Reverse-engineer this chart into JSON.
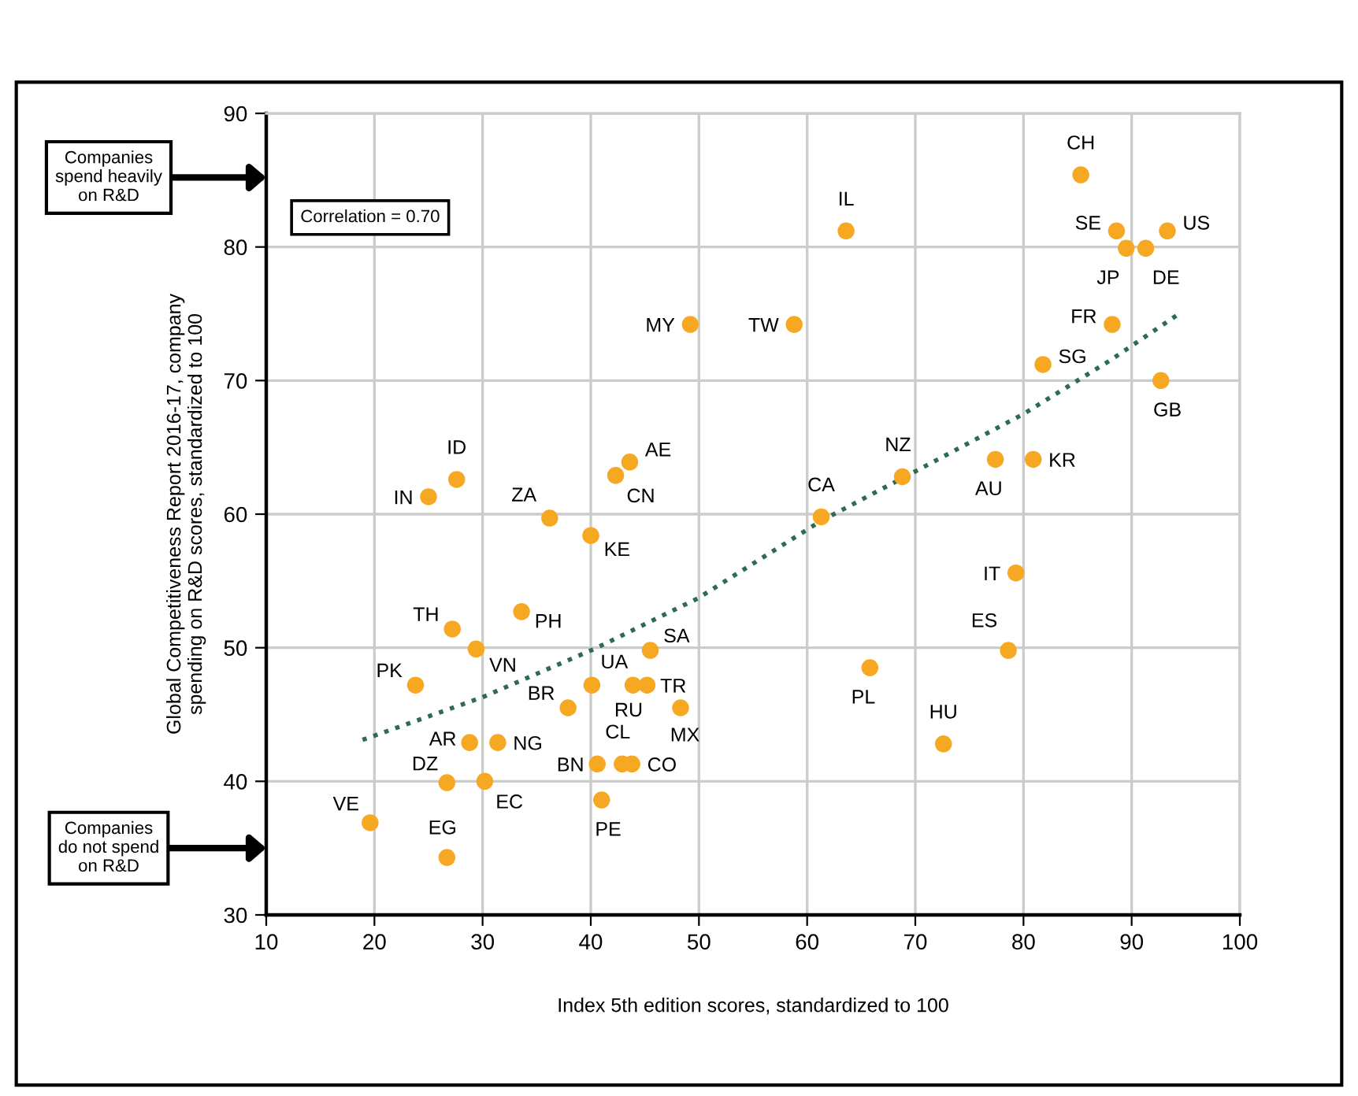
{
  "chart_data": {
    "type": "scatter",
    "xlabel": "Index 5th edition scores, standardized to 100",
    "ylabel": "Global Competitiveness Report 2016-17, company spending on R&D scores, standardized to 100",
    "xlim": [
      10,
      100
    ],
    "xticks": [
      10,
      20,
      30,
      40,
      50,
      60,
      70,
      80,
      90,
      100
    ],
    "ylim": [
      30,
      90
    ],
    "yticks": [
      30,
      40,
      50,
      60,
      70,
      80,
      90
    ],
    "grid": true,
    "marker": "circle",
    "series": [
      {
        "color": "#f7a823",
        "x": [
          85.3,
          63.6,
          88.6,
          93.3,
          89.5,
          91.3,
          49.2,
          58.8,
          88.2,
          81.8,
          92.7,
          43.6,
          42.3,
          27.6,
          25.0,
          36.2,
          40.0,
          61.3,
          68.8,
          77.4,
          80.9,
          79.3,
          78.6,
          65.8,
          72.6,
          27.2,
          33.6,
          29.4,
          45.5,
          23.8,
          40.1,
          43.9,
          45.2,
          37.9,
          48.3,
          28.8,
          31.4,
          40.6,
          42.9,
          43.8,
          26.7,
          30.2,
          41.0,
          19.6,
          26.7
        ],
        "values": [
          85.4,
          81.2,
          81.2,
          81.2,
          79.9,
          79.9,
          74.2,
          74.2,
          74.2,
          71.2,
          70.0,
          63.9,
          62.9,
          62.6,
          61.3,
          59.7,
          58.4,
          59.8,
          62.8,
          64.1,
          64.1,
          55.6,
          49.8,
          48.5,
          42.8,
          51.4,
          52.7,
          49.9,
          49.8,
          47.2,
          47.2,
          47.2,
          47.2,
          45.5,
          45.5,
          42.9,
          42.9,
          41.3,
          41.3,
          41.3,
          39.9,
          40.0,
          38.6,
          36.9,
          34.3
        ]
      },
      {
        "type": "line",
        "marker": "none",
        "color": "#2f6b4f",
        "line_style": "dotted",
        "x": [
          18.9,
          30,
          40.3,
          49.9,
          61.3,
          70,
          80.0,
          88,
          94.2
        ],
        "values": [
          43.1,
          46.3,
          49.9,
          53.7,
          59.5,
          63.2,
          67.5,
          71.5,
          74.9
        ]
      }
    ],
    "annotations": [
      "Correlation = 0.70",
      "Companies spend heavily on R&D",
      "Companies do not spend on R&D",
      {
        "text": "CH",
        "x": 85.3,
        "y": 85.4
      },
      {
        "text": "IL",
        "x": 63.6,
        "y": 81.2
      },
      {
        "text": "SE",
        "x": 88.6,
        "y": 81.2
      },
      {
        "text": "US",
        "x": 93.3,
        "y": 81.2
      },
      {
        "text": "JP",
        "x": 89.5,
        "y": 79.9
      },
      {
        "text": "DE",
        "x": 91.3,
        "y": 79.9
      },
      {
        "text": "MY",
        "x": 49.2,
        "y": 74.2
      },
      {
        "text": "TW",
        "x": 58.8,
        "y": 74.2
      },
      {
        "text": "FR",
        "x": 88.2,
        "y": 74.2
      },
      {
        "text": "SG",
        "x": 81.8,
        "y": 71.2
      },
      {
        "text": "GB",
        "x": 92.7,
        "y": 70.0
      },
      {
        "text": "AE",
        "x": 43.6,
        "y": 63.9
      },
      {
        "text": "CN",
        "x": 42.3,
        "y": 62.9
      },
      {
        "text": "ID",
        "x": 27.6,
        "y": 62.6
      },
      {
        "text": "IN",
        "x": 25.0,
        "y": 61.3
      },
      {
        "text": "ZA",
        "x": 36.2,
        "y": 59.7
      },
      {
        "text": "KE",
        "x": 40.0,
        "y": 58.4
      },
      {
        "text": "CA",
        "x": 61.3,
        "y": 59.8
      },
      {
        "text": "NZ",
        "x": 68.8,
        "y": 62.8
      },
      {
        "text": "AU",
        "x": 77.4,
        "y": 64.1
      },
      {
        "text": "KR",
        "x": 80.9,
        "y": 64.1
      },
      {
        "text": "IT",
        "x": 79.3,
        "y": 55.6
      },
      {
        "text": "ES",
        "x": 78.6,
        "y": 49.8
      },
      {
        "text": "PL",
        "x": 65.8,
        "y": 48.5
      },
      {
        "text": "HU",
        "x": 72.6,
        "y": 42.8
      },
      {
        "text": "TH",
        "x": 27.2,
        "y": 51.4
      },
      {
        "text": "PH",
        "x": 33.6,
        "y": 52.7
      },
      {
        "text": "VN",
        "x": 29.4,
        "y": 49.9
      },
      {
        "text": "SA",
        "x": 45.5,
        "y": 49.8
      },
      {
        "text": "PK",
        "x": 23.8,
        "y": 47.2
      },
      {
        "text": "UA",
        "x": 40.1,
        "y": 47.2
      },
      {
        "text": "RU",
        "x": 43.9,
        "y": 47.2
      },
      {
        "text": "TR",
        "x": 45.2,
        "y": 47.2
      },
      {
        "text": "BR",
        "x": 37.9,
        "y": 45.5
      },
      {
        "text": "MX",
        "x": 48.3,
        "y": 45.5
      },
      {
        "text": "AR",
        "x": 28.8,
        "y": 42.9
      },
      {
        "text": "NG",
        "x": 31.4,
        "y": 42.9
      },
      {
        "text": "BN",
        "x": 40.6,
        "y": 41.3
      },
      {
        "text": "CL",
        "x": 42.9,
        "y": 41.3
      },
      {
        "text": "CO",
        "x": 43.8,
        "y": 41.3
      },
      {
        "text": "DZ",
        "x": 26.7,
        "y": 39.9
      },
      {
        "text": "EC",
        "x": 30.2,
        "y": 40.0
      },
      {
        "text": "PE",
        "x": 41.0,
        "y": 38.6
      },
      {
        "text": "VE",
        "x": 19.6,
        "y": 36.9
      },
      {
        "text": "EG",
        "x": 26.7,
        "y": 34.3
      }
    ]
  }
}
